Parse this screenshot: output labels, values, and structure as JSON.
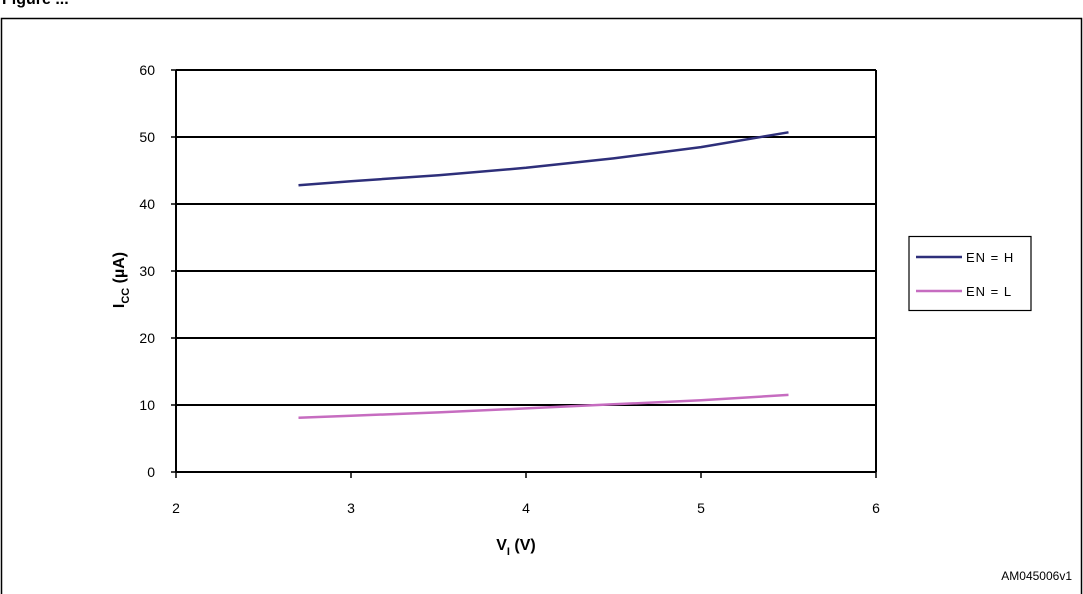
{
  "caption": "Figure ...",
  "reference_code": "AM045006v1",
  "colors": {
    "en_h": "#2e2f7a",
    "en_l": "#c66cc0",
    "grid": "#000000"
  },
  "chart_data": {
    "type": "line",
    "xlabel": "V",
    "xlabel_sub": "I",
    "xlabel_unit": " (V)",
    "ylabel": "I",
    "ylabel_sub": "CC",
    "ylabel_unit": " (µA)",
    "xlim": [
      2,
      6
    ],
    "ylim": [
      0,
      60
    ],
    "xticks": [
      2,
      3,
      4,
      5,
      6
    ],
    "yticks": [
      0,
      10,
      20,
      30,
      40,
      50,
      60
    ],
    "grid": "horizontal",
    "legend_position": "right",
    "series": [
      {
        "name": "EN = H",
        "x": [
          2.7,
          3.0,
          3.5,
          4.0,
          4.5,
          5.0,
          5.5
        ],
        "y": [
          42.8,
          43.4,
          44.3,
          45.4,
          46.8,
          48.5,
          50.7
        ]
      },
      {
        "name": "EN = L",
        "x": [
          2.7,
          3.0,
          3.5,
          4.0,
          4.5,
          5.0,
          5.5
        ],
        "y": [
          8.1,
          8.4,
          8.9,
          9.5,
          10.1,
          10.7,
          11.5
        ]
      }
    ]
  }
}
